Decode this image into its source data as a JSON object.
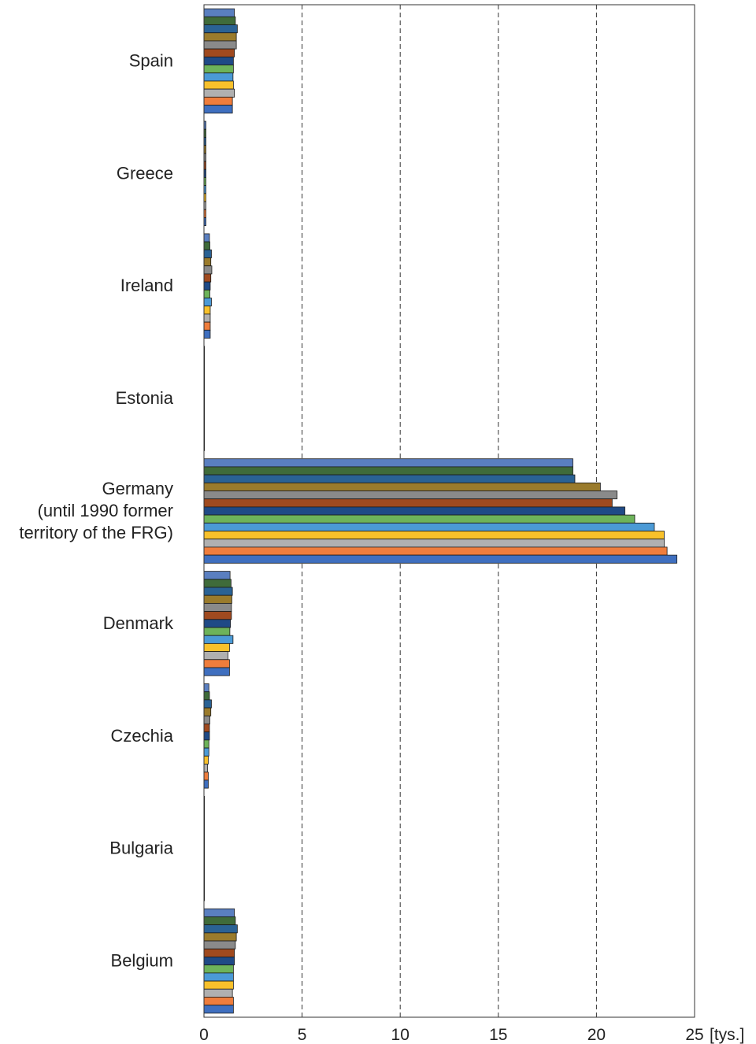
{
  "chart_data": {
    "type": "bar",
    "orientation": "horizontal",
    "title": "",
    "xlabel": "",
    "ylabel": "",
    "x_unit": "[tys.]",
    "xlim": [
      0,
      25
    ],
    "x_ticks": [
      "0",
      "5",
      "10",
      "15",
      "20",
      "25"
    ],
    "grid": "vertical dashed",
    "legend": "none",
    "categories": [
      {
        "lines": [
          "Spain"
        ]
      },
      {
        "lines": [
          "Greece"
        ]
      },
      {
        "lines": [
          "Ireland"
        ]
      },
      {
        "lines": [
          "Estonia"
        ]
      },
      {
        "lines": [
          "Germany",
          "(until 1990 former",
          "territory of the FRG)"
        ]
      },
      {
        "lines": [
          "Denmark"
        ]
      },
      {
        "lines": [
          "Czechia"
        ]
      },
      {
        "lines": [
          "Bulgaria"
        ]
      },
      {
        "lines": [
          "Belgium"
        ]
      }
    ],
    "series_colors": [
      "#5a7fc0",
      "#3f6b3a",
      "#2a6294",
      "#9a7b2c",
      "#8a8a8a",
      "#a04a1f",
      "#1f4a86",
      "#6db35a",
      "#4b9ad6",
      "#f8c12b",
      "#b0b0b0",
      "#ef7d3c",
      "#3f6fbf"
    ],
    "series": [
      {
        "values": [
          1.55,
          0.1,
          0.28,
          0.02,
          18.8,
          1.33,
          0.25,
          0.02,
          1.55
        ]
      },
      {
        "values": [
          1.6,
          0.1,
          0.3,
          0.02,
          18.8,
          1.38,
          0.28,
          0.02,
          1.6
        ]
      },
      {
        "values": [
          1.7,
          0.1,
          0.38,
          0.02,
          18.9,
          1.45,
          0.38,
          0.02,
          1.7
        ]
      },
      {
        "values": [
          1.65,
          0.1,
          0.35,
          0.02,
          20.2,
          1.42,
          0.35,
          0.02,
          1.65
        ]
      },
      {
        "values": [
          1.65,
          0.1,
          0.4,
          0.02,
          21.05,
          1.4,
          0.3,
          0.02,
          1.6
        ]
      },
      {
        "values": [
          1.55,
          0.1,
          0.35,
          0.02,
          20.8,
          1.4,
          0.28,
          0.02,
          1.55
        ]
      },
      {
        "values": [
          1.5,
          0.1,
          0.32,
          0.02,
          21.45,
          1.35,
          0.28,
          0.02,
          1.55
        ]
      },
      {
        "values": [
          1.5,
          0.1,
          0.3,
          0.02,
          21.95,
          1.32,
          0.25,
          0.02,
          1.5
        ]
      },
      {
        "values": [
          1.48,
          0.1,
          0.38,
          0.02,
          22.95,
          1.48,
          0.25,
          0.02,
          1.5
        ]
      },
      {
        "values": [
          1.5,
          0.1,
          0.32,
          0.02,
          23.45,
          1.3,
          0.22,
          0.02,
          1.5
        ]
      },
      {
        "values": [
          1.55,
          0.1,
          0.32,
          0.02,
          23.45,
          1.22,
          0.18,
          0.02,
          1.45
        ]
      },
      {
        "values": [
          1.45,
          0.1,
          0.32,
          0.02,
          23.6,
          1.3,
          0.22,
          0.02,
          1.5
        ]
      },
      {
        "values": [
          1.45,
          0.1,
          0.32,
          0.02,
          24.1,
          1.3,
          0.22,
          0.02,
          1.5
        ]
      }
    ]
  }
}
